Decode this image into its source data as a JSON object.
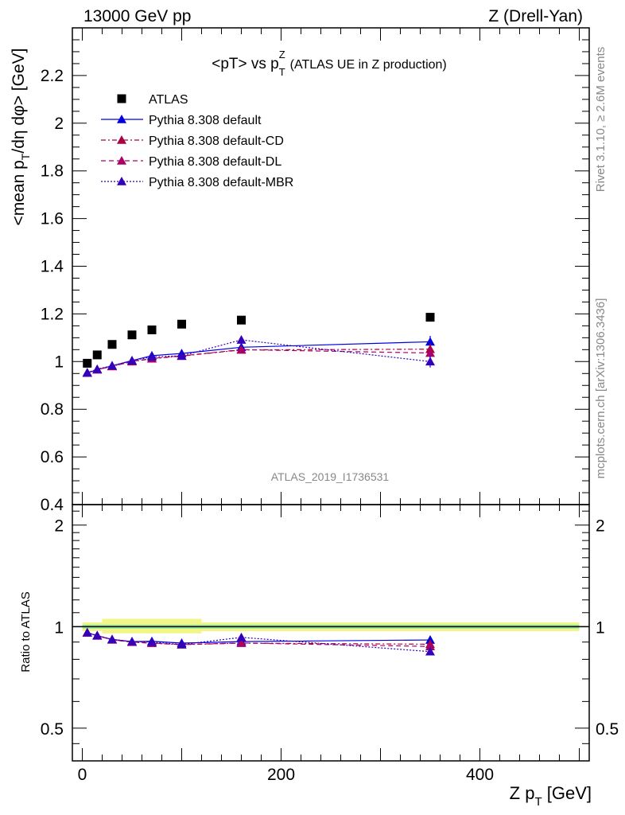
{
  "header": {
    "left": "13000 GeV pp",
    "right": "Z (Drell-Yan)"
  },
  "side": {
    "rivet": "Rivet 3.1.10, ≥ 2.6M events",
    "mcplots": "mcplots.cern.ch [arXiv:1306.3436]"
  },
  "chart_data": {
    "type": "line",
    "title_main": "<pT> vs p",
    "title_sup": "Z",
    "title_sub": "T",
    "title_rest": "(ATLAS UE in Z production)",
    "ylabel_pre": "<mean p",
    "ylabel_sub": "T",
    "ylabel_post": "/dη dφ> [GeV]",
    "ratio_ylabel": "Ratio to ATLAS",
    "xlabel_pre": "Z p",
    "xlabel_sub": "T",
    "xlabel_post": " [GeV]",
    "watermark": "ATLAS_2019_I1736531",
    "xlim": [
      -10,
      510
    ],
    "ylim": [
      0.4,
      2.4
    ],
    "ratio_ylim": [
      0.4,
      2.3
    ],
    "ratio_log": true,
    "xticks": [
      0,
      200,
      400
    ],
    "xtick_labels": [
      "0",
      "200",
      "400"
    ],
    "yticks": [
      0.4,
      0.6,
      0.8,
      1,
      1.2,
      1.4,
      1.6,
      1.8,
      2,
      2.2
    ],
    "ytick_labels": [
      "0.4",
      "0.6",
      "0.8",
      "1",
      "1.2",
      "1.4",
      "1.6",
      "1.8",
      "2",
      "2.2"
    ],
    "ratio_yticks": [
      0.5,
      1,
      2
    ],
    "ratio_ytick_labels": [
      "0.5",
      "1",
      "2"
    ],
    "legend_position": "top-left",
    "data": {
      "name": "ATLAS",
      "color": "#000000",
      "x": [
        5,
        15,
        30,
        50,
        70,
        100,
        160,
        350
      ],
      "y": [
        0.993,
        1.028,
        1.072,
        1.112,
        1.133,
        1.157,
        1.174,
        1.186
      ]
    },
    "series": [
      {
        "name": "Pythia 8.308 default",
        "color": "#0000dd",
        "dash": "",
        "y": [
          0.952,
          0.966,
          0.982,
          1.004,
          1.025,
          1.034,
          1.06,
          1.083
        ]
      },
      {
        "name": "Pythia 8.308 default-CD",
        "color": "#aa0044",
        "dash": "6,3,2,3",
        "y": [
          0.953,
          0.967,
          0.98,
          1.0,
          1.012,
          1.023,
          1.049,
          1.052
        ]
      },
      {
        "name": "Pythia 8.308 default-DL",
        "color": "#aa0066",
        "dash": "6,4",
        "y": [
          0.953,
          0.966,
          0.98,
          1.001,
          1.013,
          1.024,
          1.05,
          1.036
        ]
      },
      {
        "name": "Pythia 8.308 default-MBR",
        "color": "#3300bb",
        "dash": "2,2",
        "y": [
          0.954,
          0.968,
          0.983,
          1.004,
          1.02,
          1.024,
          1.091,
          1.0
        ]
      }
    ]
  }
}
